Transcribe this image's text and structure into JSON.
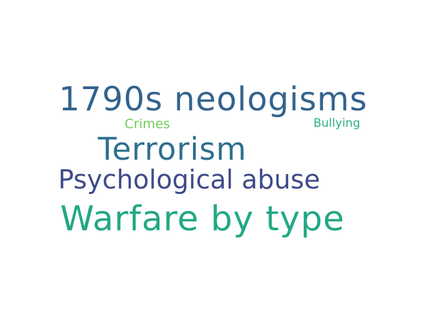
{
  "word_cloud": {
    "words": [
      {
        "text": "1790s neologisms",
        "color": "#33638d"
      },
      {
        "text": "Crimes",
        "color": "#6ece58"
      },
      {
        "text": "Bullying",
        "color": "#2cb17e"
      },
      {
        "text": "Terrorism",
        "color": "#2d6f8e"
      },
      {
        "text": "Psychological abuse",
        "color": "#3e4a89"
      },
      {
        "text": "Warfare by type",
        "color": "#22a884"
      }
    ]
  }
}
